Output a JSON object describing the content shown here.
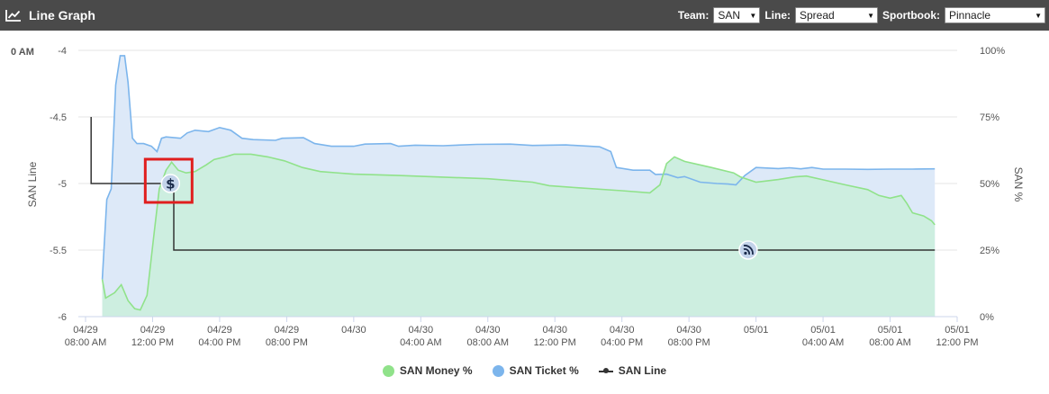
{
  "header": {
    "title": "Line Graph",
    "icon": "line-chart-icon",
    "team_label": "Team:",
    "team_value": "SAN",
    "line_label": "Line:",
    "line_value": "Spread",
    "sportbook_label": "Sportbook:",
    "sportbook_value": "Pinnacle"
  },
  "colors": {
    "header_bg": "#4a4a4a",
    "money": "#90e28a",
    "money_fill": "#cdeee0",
    "ticket": "#7cb5ec",
    "ticket_fill": "#dde9f8",
    "line": "#333333",
    "highlight": "#e01e1e"
  },
  "chart_data": {
    "type": "line",
    "corner_label": "0 AM",
    "ylabel_left": "SAN Line",
    "ylabel_right": "SAN %",
    "ylim_left": [
      -6,
      -4
    ],
    "yticks_left": [
      "-4",
      "-4.5",
      "-5",
      "-5.5",
      "-6"
    ],
    "ylim_right": [
      0,
      100
    ],
    "yticks_right": [
      "100%",
      "75%",
      "50%",
      "25%",
      "0%"
    ],
    "xlim_hours": [
      0,
      76
    ],
    "x_ticks": [
      {
        "h": 0,
        "date": "04/29",
        "time": "08:00 AM"
      },
      {
        "h": 6,
        "date": "04/29",
        "time": "12:00 PM"
      },
      {
        "h": 12,
        "date": "04/29",
        "time": "04:00 PM"
      },
      {
        "h": 18,
        "date": "04/29",
        "time": "08:00 PM"
      },
      {
        "h": 24,
        "date": "04/30",
        "time": ""
      },
      {
        "h": 30,
        "date": "04/30",
        "time": "04:00 AM"
      },
      {
        "h": 36,
        "date": "04/30",
        "time": "08:00 AM"
      },
      {
        "h": 42,
        "date": "04/30",
        "time": "12:00 PM"
      },
      {
        "h": 48,
        "date": "04/30",
        "time": "04:00 PM"
      },
      {
        "h": 54,
        "date": "04/30",
        "time": "08:00 PM"
      },
      {
        "h": 60,
        "date": "05/01",
        "time": ""
      },
      {
        "h": 66,
        "date": "05/01",
        "time": "04:00 AM"
      },
      {
        "h": 72,
        "date": "05/01",
        "time": "08:00 AM"
      },
      {
        "h": 78,
        "date": "05/01",
        "time": "12:00 PM"
      }
    ],
    "series": [
      {
        "name": "SAN Money %",
        "axis": "right",
        "points": [
          [
            1.5,
            14
          ],
          [
            1.8,
            7
          ],
          [
            2.6,
            9
          ],
          [
            3.2,
            12
          ],
          [
            3.8,
            6
          ],
          [
            4.4,
            3
          ],
          [
            4.9,
            2.5
          ],
          [
            5.5,
            8
          ],
          [
            6.1,
            30
          ],
          [
            6.6,
            48
          ],
          [
            7.2,
            55
          ],
          [
            7.7,
            58
          ],
          [
            8.3,
            55
          ],
          [
            9,
            54
          ],
          [
            9.8,
            54.5
          ],
          [
            10.8,
            57
          ],
          [
            11.5,
            59
          ],
          [
            12.5,
            60
          ],
          [
            13.3,
            61
          ],
          [
            14.8,
            61
          ],
          [
            16.3,
            60
          ],
          [
            17.8,
            58.5
          ],
          [
            19.4,
            56
          ],
          [
            21,
            54.5
          ],
          [
            24,
            53.5
          ],
          [
            28,
            53
          ],
          [
            32,
            52.4
          ],
          [
            36,
            51.8
          ],
          [
            40,
            50.5
          ],
          [
            41.5,
            49.2
          ],
          [
            44,
            48.4
          ],
          [
            48,
            47.3
          ],
          [
            50.5,
            46.5
          ],
          [
            51.4,
            49.5
          ],
          [
            52,
            57.5
          ],
          [
            52.7,
            60
          ],
          [
            53.6,
            58.3
          ],
          [
            56,
            56
          ],
          [
            58,
            54
          ],
          [
            58.6,
            52.5
          ],
          [
            60,
            50.5
          ],
          [
            62,
            51.5
          ],
          [
            63.5,
            52.5
          ],
          [
            64.5,
            52.8
          ],
          [
            66,
            51.4
          ],
          [
            68,
            49.5
          ],
          [
            70,
            47.7
          ],
          [
            71,
            45.5
          ],
          [
            72,
            44.5
          ],
          [
            73,
            45.5
          ],
          [
            73.5,
            42.5
          ],
          [
            74,
            39
          ],
          [
            75,
            37.8
          ],
          [
            75.7,
            36
          ],
          [
            76,
            34.5
          ]
        ]
      },
      {
        "name": "SAN Ticket %",
        "axis": "right",
        "points": [
          [
            1.5,
            14
          ],
          [
            1.9,
            44
          ],
          [
            2.3,
            48
          ],
          [
            2.7,
            87
          ],
          [
            3.1,
            98
          ],
          [
            3.5,
            98
          ],
          [
            3.8,
            88
          ],
          [
            4.2,
            67
          ],
          [
            4.6,
            65
          ],
          [
            5.2,
            65
          ],
          [
            5.9,
            64
          ],
          [
            6.4,
            62
          ],
          [
            6.8,
            67
          ],
          [
            7.2,
            67.5
          ],
          [
            8.5,
            67
          ],
          [
            9.1,
            69
          ],
          [
            9.8,
            70
          ],
          [
            11,
            69.5
          ],
          [
            12,
            71
          ],
          [
            13,
            70
          ],
          [
            14,
            67
          ],
          [
            15,
            66.5
          ],
          [
            17,
            66.2
          ],
          [
            17.6,
            67
          ],
          [
            19.5,
            67.2
          ],
          [
            20.5,
            65
          ],
          [
            22,
            64
          ],
          [
            24,
            64
          ],
          [
            25,
            64.8
          ],
          [
            27.3,
            65
          ],
          [
            28,
            64
          ],
          [
            29.5,
            64.4
          ],
          [
            32,
            64.2
          ],
          [
            35,
            64.7
          ],
          [
            38,
            64.8
          ],
          [
            40,
            64.3
          ],
          [
            43,
            64.5
          ],
          [
            46,
            63.8
          ],
          [
            47,
            62
          ],
          [
            47.5,
            56
          ],
          [
            49,
            55
          ],
          [
            50.5,
            55
          ],
          [
            51,
            53.4
          ],
          [
            52,
            53.5
          ],
          [
            53,
            52.2
          ],
          [
            53.6,
            52.6
          ],
          [
            55,
            50.5
          ],
          [
            56.5,
            50
          ],
          [
            57.5,
            49.8
          ],
          [
            58.2,
            49.5
          ],
          [
            59,
            53
          ],
          [
            60,
            56
          ],
          [
            62,
            55.6
          ],
          [
            63,
            55.9
          ],
          [
            64,
            55.5
          ],
          [
            65,
            56
          ],
          [
            66,
            55.4
          ],
          [
            68,
            55.4
          ],
          [
            70,
            55.3
          ],
          [
            72,
            55.4
          ],
          [
            74,
            55.4
          ],
          [
            76,
            55.5
          ]
        ]
      },
      {
        "name": "SAN Line",
        "axis": "left",
        "points": [
          [
            0.5,
            -4.5
          ],
          [
            0.5,
            -5
          ],
          [
            7.5,
            -5
          ],
          [
            7.5,
            -5
          ],
          [
            7.9,
            -5
          ],
          [
            7.9,
            -5.5
          ],
          [
            76,
            -5.5
          ]
        ]
      }
    ],
    "markers": [
      {
        "name": "money-marker",
        "h": 7.6,
        "v": -5,
        "symbol": "$"
      },
      {
        "name": "rss-marker",
        "h": 59.3,
        "v": -5.5,
        "symbol": "rss"
      }
    ]
  },
  "legend": [
    {
      "label": "SAN Money %",
      "color": "#90e28a",
      "type": "dot"
    },
    {
      "label": "SAN Ticket %",
      "color": "#7cb5ec",
      "type": "dot"
    },
    {
      "label": "SAN Line",
      "color": "#333333",
      "type": "line"
    }
  ]
}
